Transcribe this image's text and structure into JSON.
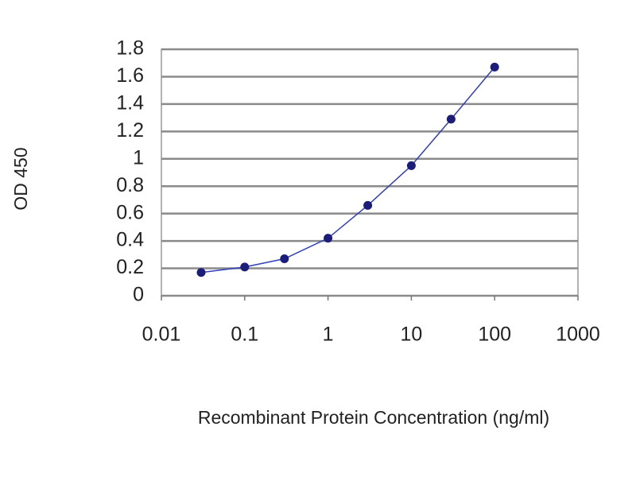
{
  "chart_data": {
    "type": "line",
    "xlabel": "Recombinant Protein Concentration (ng/ml)",
    "ylabel": "OD 450",
    "x": [
      0.03,
      0.1,
      0.3,
      1,
      3,
      10,
      30,
      100
    ],
    "series": [
      {
        "color": "#2e3fb8",
        "marker_color": "#1c1c7a",
        "values": [
          0.17,
          0.21,
          0.27,
          0.42,
          0.66,
          0.95,
          1.29,
          1.67
        ]
      }
    ],
    "xscale": "log",
    "xlim": [
      0.01,
      1000
    ],
    "xticks": [
      0.01,
      0.1,
      1,
      10,
      100,
      1000
    ],
    "ylim": [
      0,
      1.8
    ],
    "yticks": [
      0,
      0.2,
      0.4,
      0.6,
      0.8,
      1,
      1.2,
      1.4,
      1.6,
      1.8
    ],
    "grid": true
  }
}
